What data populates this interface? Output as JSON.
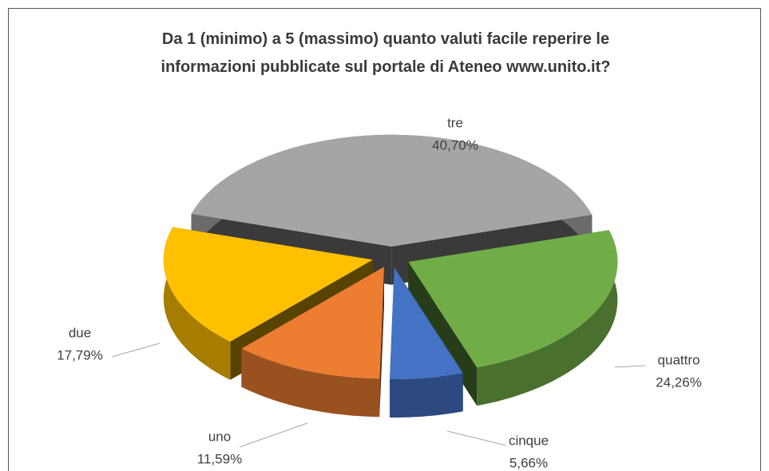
{
  "chart_data": {
    "type": "pie3d",
    "title": "Da 1 (minimo) a 5 (massimo) quanto valuti facile reperire le informazioni pubblicate sul portale di Ateneo www.unito.it?",
    "categories": [
      "tre",
      "quattro",
      "cinque",
      "uno",
      "due"
    ],
    "values": [
      40.7,
      24.26,
      5.66,
      11.59,
      17.79
    ],
    "value_labels": [
      "40,70%",
      "24,26%",
      "5,66%",
      "11,59%",
      "17,79%"
    ],
    "colors": [
      "#a5a5a5",
      "#70ad47",
      "#4472c4",
      "#ed7d31",
      "#ffc000"
    ]
  }
}
